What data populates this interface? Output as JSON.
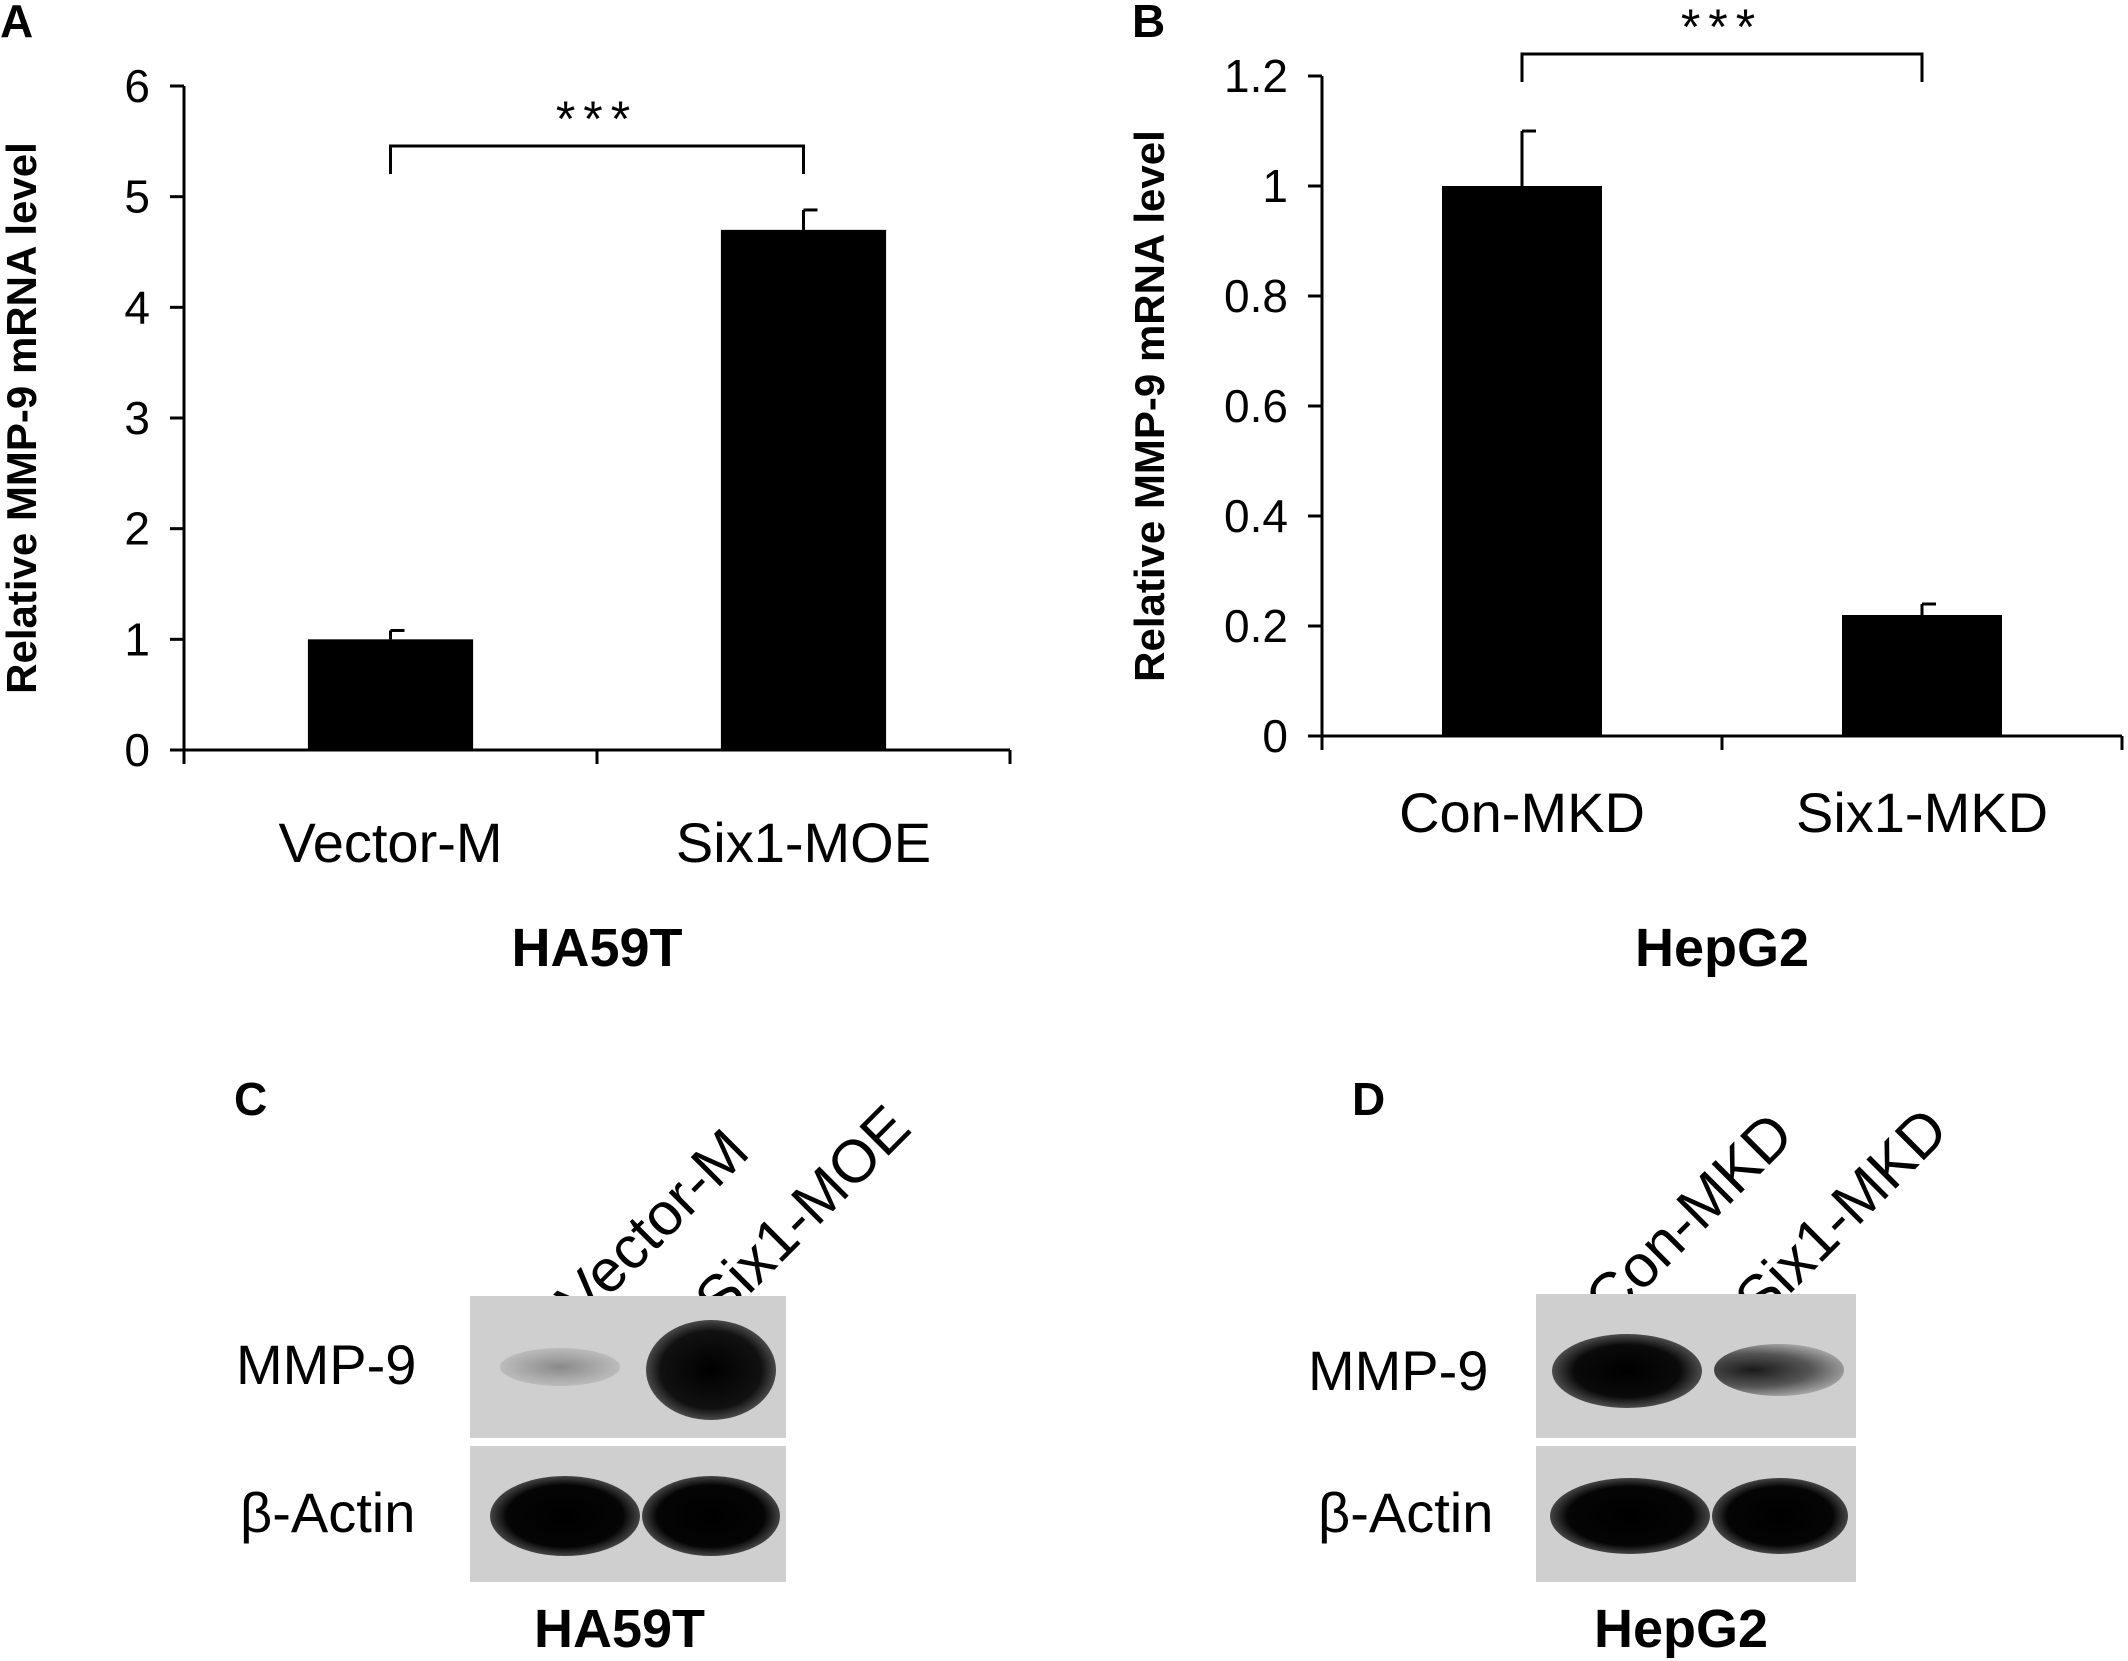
{
  "panels": {
    "A": {
      "letter": "A"
    },
    "B": {
      "letter": "B"
    },
    "C": {
      "letter": "C"
    },
    "D": {
      "letter": "D"
    }
  },
  "chart_data": [
    {
      "type": "bar",
      "panel": "A",
      "title": "",
      "xlabel": "HA59T",
      "ylabel": "Relative MMP-9 mRNA level",
      "categories": [
        "Vector-M",
        "Six1-MOE"
      ],
      "values": [
        1.0,
        4.7
      ],
      "errors": [
        0.08,
        0.18
      ],
      "ylim": [
        0,
        6
      ],
      "yticks": [
        "0",
        "1",
        "2",
        "3",
        "4",
        "5",
        "6"
      ],
      "significance": "***",
      "bar_color": "#000000"
    },
    {
      "type": "bar",
      "panel": "B",
      "title": "",
      "xlabel": "HepG2",
      "ylabel": "Relative MMP-9 mRNA level",
      "categories": [
        "Con-MKD",
        "Six1-MKD"
      ],
      "values": [
        1.0,
        0.22
      ],
      "errors": [
        0.1,
        0.02
      ],
      "ylim": [
        0,
        1.2
      ],
      "yticks": [
        "0",
        "0.2",
        "0.4",
        "0.6",
        "0.8",
        "1",
        "1.2"
      ],
      "significance": "***",
      "bar_color": "#000000"
    }
  ],
  "blots": {
    "C": {
      "lanes": [
        "Vector-M",
        "Six1-MOE"
      ],
      "rows": [
        {
          "label": "MMP-9",
          "intensities": [
            0.25,
            1.0
          ]
        },
        {
          "label": "β-Actin",
          "intensities": [
            1.0,
            1.0
          ]
        }
      ],
      "cell_line": "HA59T"
    },
    "D": {
      "lanes": [
        "Con-MKD",
        "Six1-MKD"
      ],
      "rows": [
        {
          "label": "MMP-9",
          "intensities": [
            0.9,
            0.45
          ]
        },
        {
          "label": "β-Actin",
          "intensities": [
            1.0,
            1.0
          ]
        }
      ],
      "cell_line": "HepG2"
    }
  }
}
